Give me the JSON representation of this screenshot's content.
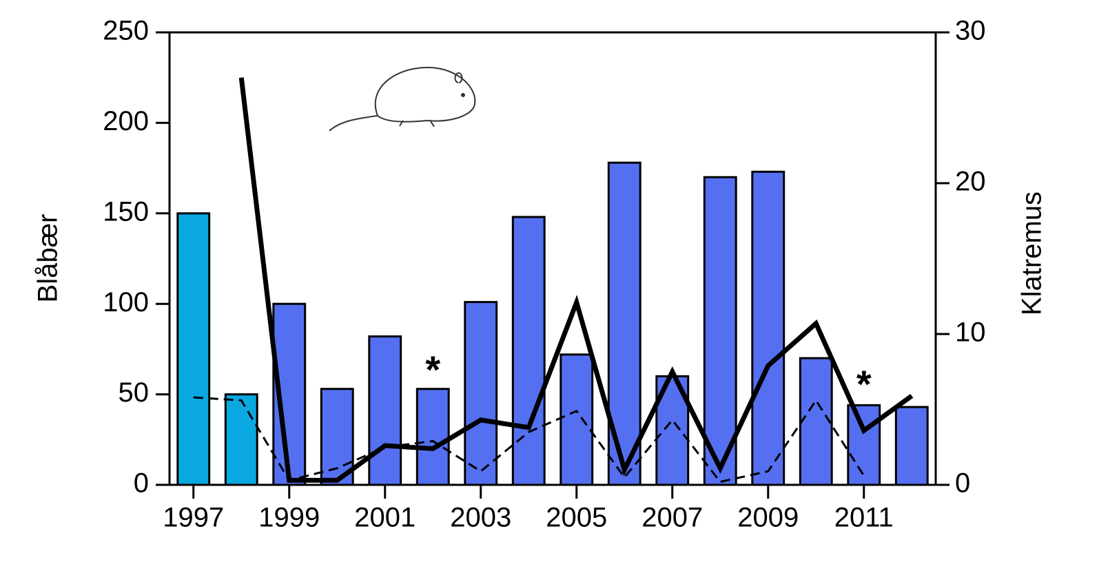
{
  "chart_data": {
    "type": "bar-line",
    "x": [
      1997,
      1998,
      1999,
      2000,
      2001,
      2002,
      2003,
      2004,
      2005,
      2006,
      2007,
      2008,
      2009,
      2010,
      2011,
      2012
    ],
    "xlim": [
      1996.5,
      2012.5
    ],
    "xticks": [
      1997,
      1999,
      2001,
      2003,
      2005,
      2007,
      2009,
      2011
    ],
    "ylabel": "Blåbær",
    "y2label": "Klatremus",
    "ylim": [
      0,
      250
    ],
    "yticks": [
      0,
      50,
      100,
      150,
      200,
      250
    ],
    "y2lim": [
      0,
      30
    ],
    "y2ticks": [
      0,
      10,
      20,
      30
    ],
    "series": [
      {
        "type": "bar",
        "colors": [
          "#0aa8e0",
          "#0aa8e0",
          "#5470f0",
          "#5470f0",
          "#5470f0",
          "#5470f0",
          "#5470f0",
          "#5470f0",
          "#5470f0",
          "#5470f0",
          "#5470f0",
          "#5470f0",
          "#5470f0",
          "#5470f0",
          "#5470f0",
          "#5470f0"
        ],
        "values": [
          150,
          50,
          100,
          53,
          82,
          53,
          101,
          148,
          72,
          178,
          60,
          170,
          173,
          70,
          44,
          43
        ]
      },
      {
        "type": "line",
        "axis": "y2",
        "color": "#000000",
        "dashed": false,
        "values": [
          null,
          27.0,
          0.3,
          0.3,
          2.6,
          2.4,
          4.3,
          3.8,
          12.1,
          1.0,
          7.5,
          1.1,
          7.9,
          10.7,
          3.6,
          5.9
        ]
      },
      {
        "type": "line",
        "axis": "y2",
        "color": "#000000",
        "dashed": true,
        "values": [
          5.8,
          5.6,
          0.3,
          1.1,
          2.5,
          2.9,
          0.9,
          3.5,
          4.9,
          0.5,
          4.3,
          0.2,
          0.9,
          5.6,
          0.6,
          null
        ]
      }
    ],
    "annotations": [
      {
        "text": "*",
        "x": 2002,
        "y": 60
      },
      {
        "text": "*",
        "x": 2011,
        "y": 52
      }
    ]
  }
}
